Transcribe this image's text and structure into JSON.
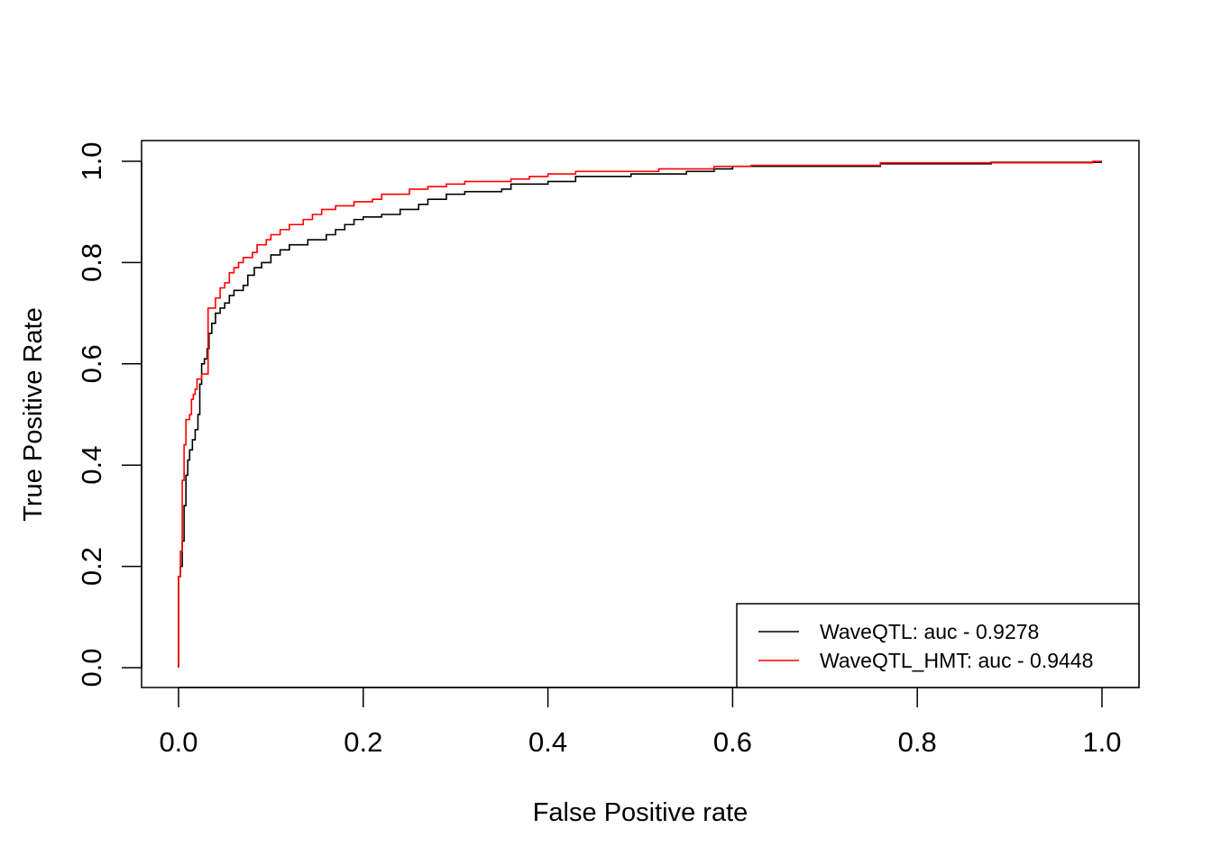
{
  "chart_data": {
    "type": "line",
    "title": "",
    "xlabel": "False Positive rate",
    "ylabel": "True Positive Rate",
    "xlim": [
      0,
      1
    ],
    "ylim": [
      0,
      1
    ],
    "xticks": [
      "0.0",
      "0.2",
      "0.4",
      "0.6",
      "0.8",
      "1.0"
    ],
    "yticks": [
      "0.0",
      "0.2",
      "0.4",
      "0.6",
      "0.8",
      "1.0"
    ],
    "grid": false,
    "legend_position": "bottom-right",
    "series": [
      {
        "name": "WaveQTL: auc - 0.9278",
        "color": "#000000",
        "points": [
          [
            0.0,
            0.0
          ],
          [
            0.0,
            0.18
          ],
          [
            0.002,
            0.18
          ],
          [
            0.002,
            0.2
          ],
          [
            0.004,
            0.2
          ],
          [
            0.004,
            0.25
          ],
          [
            0.006,
            0.25
          ],
          [
            0.006,
            0.32
          ],
          [
            0.008,
            0.32
          ],
          [
            0.008,
            0.38
          ],
          [
            0.01,
            0.38
          ],
          [
            0.01,
            0.41
          ],
          [
            0.012,
            0.41
          ],
          [
            0.012,
            0.43
          ],
          [
            0.015,
            0.43
          ],
          [
            0.015,
            0.45
          ],
          [
            0.018,
            0.45
          ],
          [
            0.018,
            0.47
          ],
          [
            0.021,
            0.47
          ],
          [
            0.021,
            0.5
          ],
          [
            0.023,
            0.5
          ],
          [
            0.023,
            0.56
          ],
          [
            0.025,
            0.56
          ],
          [
            0.025,
            0.6
          ],
          [
            0.028,
            0.6
          ],
          [
            0.028,
            0.61
          ],
          [
            0.031,
            0.61
          ],
          [
            0.031,
            0.63
          ],
          [
            0.033,
            0.63
          ],
          [
            0.033,
            0.66
          ],
          [
            0.036,
            0.66
          ],
          [
            0.036,
            0.68
          ],
          [
            0.04,
            0.68
          ],
          [
            0.04,
            0.7
          ],
          [
            0.045,
            0.7
          ],
          [
            0.045,
            0.71
          ],
          [
            0.05,
            0.71
          ],
          [
            0.05,
            0.72
          ],
          [
            0.055,
            0.72
          ],
          [
            0.055,
            0.735
          ],
          [
            0.06,
            0.735
          ],
          [
            0.06,
            0.745
          ],
          [
            0.07,
            0.745
          ],
          [
            0.07,
            0.755
          ],
          [
            0.075,
            0.755
          ],
          [
            0.075,
            0.775
          ],
          [
            0.082,
            0.775
          ],
          [
            0.082,
            0.79
          ],
          [
            0.09,
            0.79
          ],
          [
            0.09,
            0.8
          ],
          [
            0.1,
            0.8
          ],
          [
            0.1,
            0.815
          ],
          [
            0.11,
            0.815
          ],
          [
            0.11,
            0.825
          ],
          [
            0.12,
            0.825
          ],
          [
            0.12,
            0.835
          ],
          [
            0.14,
            0.835
          ],
          [
            0.14,
            0.845
          ],
          [
            0.16,
            0.845
          ],
          [
            0.16,
            0.855
          ],
          [
            0.17,
            0.855
          ],
          [
            0.17,
            0.865
          ],
          [
            0.18,
            0.865
          ],
          [
            0.18,
            0.875
          ],
          [
            0.19,
            0.875
          ],
          [
            0.19,
            0.885
          ],
          [
            0.2,
            0.885
          ],
          [
            0.2,
            0.89
          ],
          [
            0.22,
            0.89
          ],
          [
            0.22,
            0.895
          ],
          [
            0.24,
            0.895
          ],
          [
            0.24,
            0.905
          ],
          [
            0.26,
            0.905
          ],
          [
            0.26,
            0.915
          ],
          [
            0.27,
            0.915
          ],
          [
            0.27,
            0.925
          ],
          [
            0.29,
            0.925
          ],
          [
            0.29,
            0.935
          ],
          [
            0.31,
            0.935
          ],
          [
            0.31,
            0.94
          ],
          [
            0.35,
            0.94
          ],
          [
            0.35,
            0.945
          ],
          [
            0.36,
            0.945
          ],
          [
            0.36,
            0.955
          ],
          [
            0.4,
            0.955
          ],
          [
            0.4,
            0.96
          ],
          [
            0.43,
            0.96
          ],
          [
            0.43,
            0.97
          ],
          [
            0.49,
            0.97
          ],
          [
            0.49,
            0.975
          ],
          [
            0.55,
            0.975
          ],
          [
            0.55,
            0.98
          ],
          [
            0.58,
            0.98
          ],
          [
            0.58,
            0.985
          ],
          [
            0.6,
            0.985
          ],
          [
            0.6,
            0.99
          ],
          [
            0.76,
            0.99
          ],
          [
            0.76,
            0.995
          ],
          [
            0.88,
            0.995
          ],
          [
            0.88,
            0.998
          ],
          [
            1.0,
            0.998
          ]
        ]
      },
      {
        "name": "WaveQTL_HMT: auc - 0.9448",
        "color": "#ff0000",
        "points": [
          [
            0.0,
            0.0
          ],
          [
            0.0,
            0.18
          ],
          [
            0.002,
            0.18
          ],
          [
            0.002,
            0.23
          ],
          [
            0.004,
            0.23
          ],
          [
            0.004,
            0.37
          ],
          [
            0.006,
            0.37
          ],
          [
            0.006,
            0.44
          ],
          [
            0.008,
            0.44
          ],
          [
            0.008,
            0.49
          ],
          [
            0.012,
            0.49
          ],
          [
            0.012,
            0.5
          ],
          [
            0.014,
            0.5
          ],
          [
            0.014,
            0.53
          ],
          [
            0.016,
            0.53
          ],
          [
            0.016,
            0.54
          ],
          [
            0.018,
            0.54
          ],
          [
            0.018,
            0.55
          ],
          [
            0.02,
            0.55
          ],
          [
            0.02,
            0.57
          ],
          [
            0.025,
            0.57
          ],
          [
            0.025,
            0.58
          ],
          [
            0.032,
            0.58
          ],
          [
            0.032,
            0.71
          ],
          [
            0.04,
            0.71
          ],
          [
            0.04,
            0.73
          ],
          [
            0.045,
            0.73
          ],
          [
            0.045,
            0.75
          ],
          [
            0.05,
            0.75
          ],
          [
            0.05,
            0.76
          ],
          [
            0.055,
            0.76
          ],
          [
            0.055,
            0.78
          ],
          [
            0.06,
            0.78
          ],
          [
            0.06,
            0.79
          ],
          [
            0.065,
            0.79
          ],
          [
            0.065,
            0.8
          ],
          [
            0.07,
            0.8
          ],
          [
            0.07,
            0.81
          ],
          [
            0.08,
            0.81
          ],
          [
            0.08,
            0.82
          ],
          [
            0.085,
            0.82
          ],
          [
            0.085,
            0.835
          ],
          [
            0.095,
            0.835
          ],
          [
            0.095,
            0.845
          ],
          [
            0.1,
            0.845
          ],
          [
            0.1,
            0.855
          ],
          [
            0.11,
            0.855
          ],
          [
            0.11,
            0.865
          ],
          [
            0.12,
            0.865
          ],
          [
            0.12,
            0.875
          ],
          [
            0.135,
            0.875
          ],
          [
            0.135,
            0.885
          ],
          [
            0.145,
            0.885
          ],
          [
            0.145,
            0.895
          ],
          [
            0.155,
            0.895
          ],
          [
            0.155,
            0.905
          ],
          [
            0.17,
            0.905
          ],
          [
            0.17,
            0.912
          ],
          [
            0.19,
            0.912
          ],
          [
            0.19,
            0.92
          ],
          [
            0.21,
            0.92
          ],
          [
            0.21,
            0.925
          ],
          [
            0.22,
            0.925
          ],
          [
            0.22,
            0.935
          ],
          [
            0.25,
            0.935
          ],
          [
            0.25,
            0.945
          ],
          [
            0.27,
            0.945
          ],
          [
            0.27,
            0.95
          ],
          [
            0.29,
            0.95
          ],
          [
            0.29,
            0.955
          ],
          [
            0.31,
            0.955
          ],
          [
            0.31,
            0.96
          ],
          [
            0.36,
            0.96
          ],
          [
            0.36,
            0.965
          ],
          [
            0.38,
            0.965
          ],
          [
            0.38,
            0.97
          ],
          [
            0.4,
            0.97
          ],
          [
            0.4,
            0.975
          ],
          [
            0.43,
            0.975
          ],
          [
            0.43,
            0.98
          ],
          [
            0.52,
            0.98
          ],
          [
            0.52,
            0.985
          ],
          [
            0.58,
            0.985
          ],
          [
            0.58,
            0.99
          ],
          [
            0.62,
            0.99
          ],
          [
            0.62,
            0.992
          ],
          [
            0.76,
            0.992
          ],
          [
            0.76,
            0.997
          ],
          [
            0.99,
            0.997
          ],
          [
            0.99,
            1.0
          ],
          [
            1.0,
            1.0
          ]
        ]
      }
    ]
  }
}
